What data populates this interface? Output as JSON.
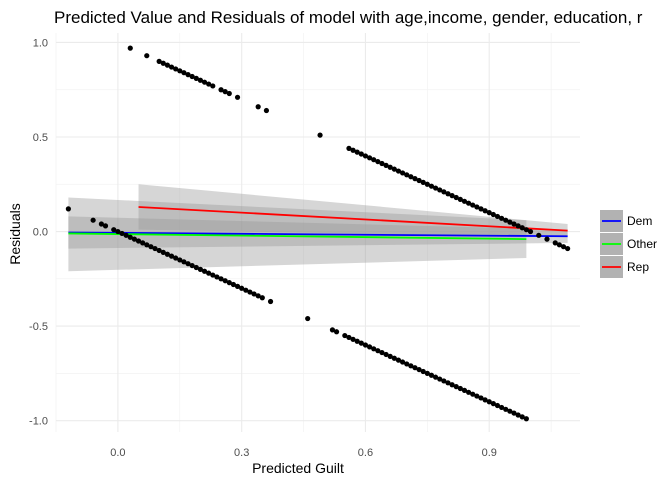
{
  "chart_data": {
    "type": "scatter",
    "title": "Predicted Value and Residuals of model with age,income, gender, education, r",
    "xlabel": "Predicted Guilt",
    "ylabel": "Residuals",
    "xlim": [
      -0.15,
      1.12
    ],
    "ylim": [
      -1.06,
      1.05
    ],
    "x_ticks": [
      0.0,
      0.3,
      0.6,
      0.9
    ],
    "x_tick_labels": [
      "0.0",
      "0.3",
      "0.6",
      "0.9"
    ],
    "y_ticks": [
      -1.0,
      -0.5,
      0.0,
      0.5,
      1.0
    ],
    "y_tick_labels": [
      "-1.0",
      "-0.5",
      "0.0",
      "0.5",
      "1.0"
    ],
    "grid": true,
    "legend_position": "right",
    "points_top_band": [
      [
        0.03,
        0.97
      ],
      [
        0.07,
        0.93
      ],
      [
        0.1,
        0.9
      ],
      [
        0.11,
        0.89
      ],
      [
        0.12,
        0.88
      ],
      [
        0.13,
        0.87
      ],
      [
        0.14,
        0.86
      ],
      [
        0.15,
        0.85
      ],
      [
        0.16,
        0.84
      ],
      [
        0.17,
        0.83
      ],
      [
        0.18,
        0.82
      ],
      [
        0.19,
        0.81
      ],
      [
        0.2,
        0.8
      ],
      [
        0.21,
        0.79
      ],
      [
        0.22,
        0.78
      ],
      [
        0.23,
        0.77
      ],
      [
        0.25,
        0.75
      ],
      [
        0.26,
        0.74
      ],
      [
        0.27,
        0.73
      ],
      [
        0.29,
        0.71
      ],
      [
        0.34,
        0.66
      ],
      [
        0.36,
        0.64
      ],
      [
        0.49,
        0.51
      ],
      [
        0.56,
        0.44
      ],
      [
        0.57,
        0.43
      ],
      [
        0.58,
        0.42
      ],
      [
        0.59,
        0.41
      ],
      [
        0.6,
        0.4
      ],
      [
        0.61,
        0.39
      ],
      [
        0.62,
        0.38
      ],
      [
        0.63,
        0.37
      ],
      [
        0.64,
        0.36
      ],
      [
        0.65,
        0.35
      ],
      [
        0.66,
        0.34
      ],
      [
        0.67,
        0.33
      ],
      [
        0.68,
        0.32
      ],
      [
        0.69,
        0.31
      ],
      [
        0.7,
        0.3
      ],
      [
        0.71,
        0.29
      ],
      [
        0.72,
        0.28
      ],
      [
        0.73,
        0.27
      ],
      [
        0.74,
        0.26
      ],
      [
        0.75,
        0.25
      ],
      [
        0.76,
        0.24
      ],
      [
        0.77,
        0.23
      ],
      [
        0.78,
        0.22
      ],
      [
        0.79,
        0.21
      ],
      [
        0.8,
        0.2
      ],
      [
        0.81,
        0.19
      ],
      [
        0.82,
        0.18
      ],
      [
        0.83,
        0.17
      ],
      [
        0.84,
        0.16
      ],
      [
        0.85,
        0.15
      ],
      [
        0.86,
        0.14
      ],
      [
        0.87,
        0.13
      ],
      [
        0.88,
        0.12
      ],
      [
        0.89,
        0.11
      ],
      [
        0.9,
        0.1
      ],
      [
        0.91,
        0.09
      ],
      [
        0.92,
        0.08
      ],
      [
        0.93,
        0.07
      ],
      [
        0.94,
        0.06
      ],
      [
        0.95,
        0.05
      ],
      [
        0.96,
        0.04
      ],
      [
        0.97,
        0.03
      ],
      [
        0.98,
        0.02
      ],
      [
        0.99,
        0.01
      ],
      [
        1.0,
        0.0
      ]
    ],
    "points_bottom_band": [
      [
        -0.12,
        0.12
      ],
      [
        -0.06,
        0.06
      ],
      [
        -0.04,
        0.04
      ],
      [
        -0.03,
        0.03
      ],
      [
        -0.01,
        0.01
      ],
      [
        0.0,
        0.0
      ],
      [
        0.01,
        -0.01
      ],
      [
        0.02,
        -0.02
      ],
      [
        0.03,
        -0.03
      ],
      [
        0.04,
        -0.04
      ],
      [
        0.05,
        -0.05
      ],
      [
        0.06,
        -0.06
      ],
      [
        0.07,
        -0.07
      ],
      [
        0.08,
        -0.08
      ],
      [
        0.09,
        -0.09
      ],
      [
        0.1,
        -0.1
      ],
      [
        0.11,
        -0.11
      ],
      [
        0.12,
        -0.12
      ],
      [
        0.13,
        -0.13
      ],
      [
        0.14,
        -0.14
      ],
      [
        0.15,
        -0.15
      ],
      [
        0.16,
        -0.16
      ],
      [
        0.17,
        -0.17
      ],
      [
        0.18,
        -0.18
      ],
      [
        0.19,
        -0.19
      ],
      [
        0.2,
        -0.2
      ],
      [
        0.21,
        -0.21
      ],
      [
        0.22,
        -0.22
      ],
      [
        0.23,
        -0.23
      ],
      [
        0.24,
        -0.24
      ],
      [
        0.25,
        -0.25
      ],
      [
        0.26,
        -0.26
      ],
      [
        0.27,
        -0.27
      ],
      [
        0.28,
        -0.28
      ],
      [
        0.29,
        -0.29
      ],
      [
        0.3,
        -0.3
      ],
      [
        0.31,
        -0.31
      ],
      [
        0.32,
        -0.32
      ],
      [
        0.33,
        -0.33
      ],
      [
        0.34,
        -0.34
      ],
      [
        0.35,
        -0.35
      ],
      [
        0.37,
        -0.37
      ],
      [
        0.46,
        -0.46
      ],
      [
        0.52,
        -0.52
      ],
      [
        0.53,
        -0.53
      ],
      [
        0.55,
        -0.55
      ],
      [
        0.56,
        -0.56
      ],
      [
        0.57,
        -0.57
      ],
      [
        0.58,
        -0.58
      ],
      [
        0.59,
        -0.59
      ],
      [
        0.6,
        -0.6
      ],
      [
        0.61,
        -0.61
      ],
      [
        0.62,
        -0.62
      ],
      [
        0.63,
        -0.63
      ],
      [
        0.64,
        -0.64
      ],
      [
        0.65,
        -0.65
      ],
      [
        0.66,
        -0.66
      ],
      [
        0.67,
        -0.67
      ],
      [
        0.68,
        -0.68
      ],
      [
        0.69,
        -0.69
      ],
      [
        0.7,
        -0.7
      ],
      [
        0.71,
        -0.71
      ],
      [
        0.72,
        -0.72
      ],
      [
        0.73,
        -0.73
      ],
      [
        0.74,
        -0.74
      ],
      [
        0.75,
        -0.75
      ],
      [
        0.76,
        -0.76
      ],
      [
        0.77,
        -0.77
      ],
      [
        0.78,
        -0.78
      ],
      [
        0.79,
        -0.79
      ],
      [
        0.8,
        -0.8
      ],
      [
        0.81,
        -0.81
      ],
      [
        0.82,
        -0.82
      ],
      [
        0.83,
        -0.83
      ],
      [
        0.84,
        -0.84
      ],
      [
        0.85,
        -0.85
      ],
      [
        0.86,
        -0.86
      ],
      [
        0.87,
        -0.87
      ],
      [
        0.88,
        -0.88
      ],
      [
        0.89,
        -0.89
      ],
      [
        0.9,
        -0.9
      ],
      [
        0.91,
        -0.91
      ],
      [
        0.92,
        -0.92
      ],
      [
        0.93,
        -0.93
      ],
      [
        0.94,
        -0.94
      ],
      [
        0.95,
        -0.95
      ],
      [
        0.96,
        -0.96
      ],
      [
        0.97,
        -0.97
      ],
      [
        0.98,
        -0.98
      ],
      [
        0.99,
        -0.99
      ]
    ],
    "points_right_cluster": [
      [
        1.02,
        -0.02
      ],
      [
        1.04,
        -0.04
      ],
      [
        1.06,
        -0.06
      ],
      [
        1.07,
        -0.07
      ],
      [
        1.08,
        -0.08
      ],
      [
        1.09,
        -0.09
      ]
    ],
    "series": [
      {
        "name": "Dem",
        "color": "#0000ff",
        "x": [
          -0.12,
          1.09
        ],
        "y": [
          -0.005,
          -0.025
        ],
        "ci_lower": [
          -0.09,
          -0.06
        ],
        "ci_upper": [
          0.08,
          0.01
        ]
      },
      {
        "name": "Other",
        "color": "#00ff00",
        "x": [
          -0.12,
          0.99
        ],
        "y": [
          -0.01,
          -0.04
        ],
        "ci_lower": [
          -0.21,
          -0.14
        ],
        "ci_upper": [
          0.18,
          0.06
        ]
      },
      {
        "name": "Rep",
        "color": "#ff0000",
        "x": [
          0.05,
          1.09
        ],
        "y": [
          0.13,
          0.005
        ],
        "ci_lower": [
          0.01,
          -0.03
        ],
        "ci_upper": [
          0.25,
          0.04
        ]
      }
    ]
  }
}
